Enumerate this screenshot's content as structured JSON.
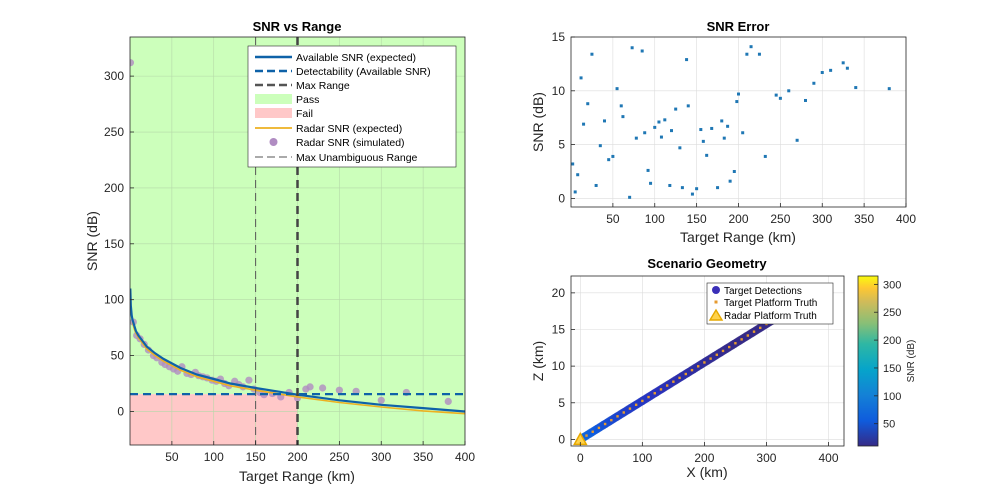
{
  "chart_data": [
    {
      "id": "snr-vs-range",
      "type": "line",
      "title": "SNR vs Range",
      "xlabel": "Target Range (km)",
      "ylabel": "SNR (dB)",
      "xlim": [
        0,
        400
      ],
      "ylim": [
        -30,
        335
      ],
      "xticks": [
        50,
        100,
        150,
        200,
        250,
        300,
        350,
        400
      ],
      "yticks": [
        0,
        50,
        100,
        150,
        200,
        250,
        300
      ],
      "grid": true,
      "legend_position": "top-right",
      "max_range_km": 200,
      "max_unambiguous_range_km": 150,
      "detectability_db": 15.5,
      "regions": [
        {
          "name": "Pass",
          "color": "#ccffbb"
        },
        {
          "name": "Fail",
          "color": "#ffc8c8"
        }
      ],
      "series": [
        {
          "name": "Available SNR (expected)",
          "style": "solid",
          "color": "#0e62a8",
          "x": [
            0.3,
            1,
            2,
            3,
            5,
            7,
            10,
            15,
            20,
            30,
            40,
            50,
            60,
            80,
            100,
            120,
            150,
            175,
            200,
            250,
            300,
            350,
            400
          ],
          "y": [
            110,
            95,
            86,
            82,
            77,
            72,
            68,
            63,
            58,
            52,
            47,
            43,
            39,
            33,
            29,
            25,
            21,
            18,
            15,
            10,
            6,
            3,
            0
          ]
        },
        {
          "name": "Detectability (Available SNR)",
          "style": "dashed",
          "color": "#0e62a8"
        },
        {
          "name": "Max Range",
          "style": "dashed-thick",
          "color": "#555555"
        },
        {
          "name": "Pass",
          "style": "patch",
          "color": "#ccffbb"
        },
        {
          "name": "Fail",
          "style": "patch",
          "color": "#ffc8c8"
        },
        {
          "name": "Radar SNR (expected)",
          "style": "solid",
          "color": "#edb120",
          "x": [
            3,
            5,
            7,
            10,
            15,
            20,
            30,
            40,
            50,
            60,
            80,
            100,
            120,
            150,
            175,
            200,
            250,
            300,
            350,
            400
          ],
          "y": [
            80,
            74,
            70,
            66,
            61,
            56,
            50,
            45,
            41,
            37,
            31,
            27,
            23,
            19,
            16,
            13,
            8,
            4,
            0.5,
            -2
          ]
        },
        {
          "name": "Radar SNR (simulated)",
          "style": "marker",
          "color": "#b08cc2",
          "x": [
            0.5,
            4,
            8,
            12,
            17,
            22,
            28,
            32,
            38,
            42,
            47,
            52,
            57,
            62,
            68,
            73,
            78,
            82,
            87,
            92,
            98,
            103,
            108,
            113,
            118,
            125,
            130,
            135,
            142,
            148,
            155,
            160,
            170,
            180,
            190,
            200,
            210,
            215,
            230,
            250,
            270,
            300,
            330,
            380
          ],
          "y": [
            312,
            80,
            68,
            65,
            60,
            55,
            50,
            48,
            44,
            42,
            40,
            38,
            36,
            40,
            34,
            33,
            35,
            32,
            31,
            30,
            28,
            27,
            29,
            25,
            23,
            27,
            24,
            22,
            28,
            20,
            17,
            15,
            16,
            13,
            17,
            12,
            20,
            22,
            21,
            19,
            18,
            10,
            17,
            9
          ]
        },
        {
          "name": "Max Unambiguous Range",
          "style": "dashed-thin",
          "color": "#666666"
        }
      ]
    },
    {
      "id": "snr-error",
      "type": "scatter",
      "title": "SNR Error",
      "xlabel": "Target Range (km)",
      "ylabel": "SNR (dB)",
      "xlim": [
        0,
        400
      ],
      "ylim": [
        -0.8,
        15
      ],
      "xticks": [
        50,
        100,
        150,
        200,
        250,
        300,
        350,
        400
      ],
      "yticks": [
        0,
        5,
        10,
        15
      ],
      "grid": true,
      "color": "#1f77b4",
      "x": [
        2,
        5,
        8,
        12,
        15,
        20,
        25,
        30,
        35,
        40,
        45,
        50,
        55,
        60,
        62,
        70,
        73,
        78,
        85,
        88,
        92,
        95,
        100,
        105,
        108,
        112,
        118,
        120,
        125,
        130,
        133,
        138,
        140,
        145,
        150,
        155,
        158,
        162,
        168,
        175,
        180,
        183,
        187,
        190,
        195,
        198,
        200,
        205,
        210,
        215,
        225,
        232,
        245,
        250,
        260,
        270,
        280,
        290,
        300,
        310,
        325,
        330,
        340,
        380
      ],
      "y": [
        3.2,
        0.6,
        2.2,
        11.2,
        6.9,
        8.8,
        13.4,
        1.2,
        4.9,
        7.2,
        3.6,
        3.9,
        10.2,
        8.6,
        7.6,
        0.1,
        14.0,
        5.6,
        13.7,
        6.1,
        2.6,
        1.4,
        6.6,
        7.1,
        5.7,
        7.3,
        1.2,
        6.3,
        8.3,
        4.7,
        1.0,
        12.9,
        8.6,
        0.4,
        0.9,
        6.4,
        5.3,
        4.0,
        6.5,
        1.0,
        7.2,
        5.6,
        6.7,
        1.6,
        2.5,
        9.0,
        9.7,
        6.1,
        13.4,
        14.1,
        13.4,
        3.9,
        9.6,
        9.3,
        10.0,
        5.4,
        9.1,
        10.7,
        11.7,
        11.9,
        12.6,
        12.1,
        10.3,
        10.2
      ]
    },
    {
      "id": "scenario-geometry",
      "type": "scatter",
      "title": "Scenario Geometry",
      "xlabel": "X (km)",
      "ylabel": "Z (km)",
      "xlim": [
        -15,
        425
      ],
      "ylim": [
        -0.9,
        22.3
      ],
      "xticks": [
        0,
        100,
        200,
        300,
        400
      ],
      "yticks": [
        0,
        5,
        10,
        15,
        20
      ],
      "grid": true,
      "legend_position": "top-right",
      "legend": [
        "Target Detections",
        "Target Platform Truth",
        "Radar Platform Truth"
      ],
      "detections_range": [
        5,
        380
      ],
      "detections_count": 120,
      "truth_line": {
        "x": [
          0,
          400
        ],
        "z": [
          0,
          21
        ]
      },
      "radar_position": {
        "x": 0,
        "z": 0
      },
      "colorbar": {
        "label": "SNR (dB)",
        "ticks": [
          50,
          100,
          150,
          200,
          250,
          300
        ],
        "range": [
          10,
          315
        ]
      }
    }
  ]
}
